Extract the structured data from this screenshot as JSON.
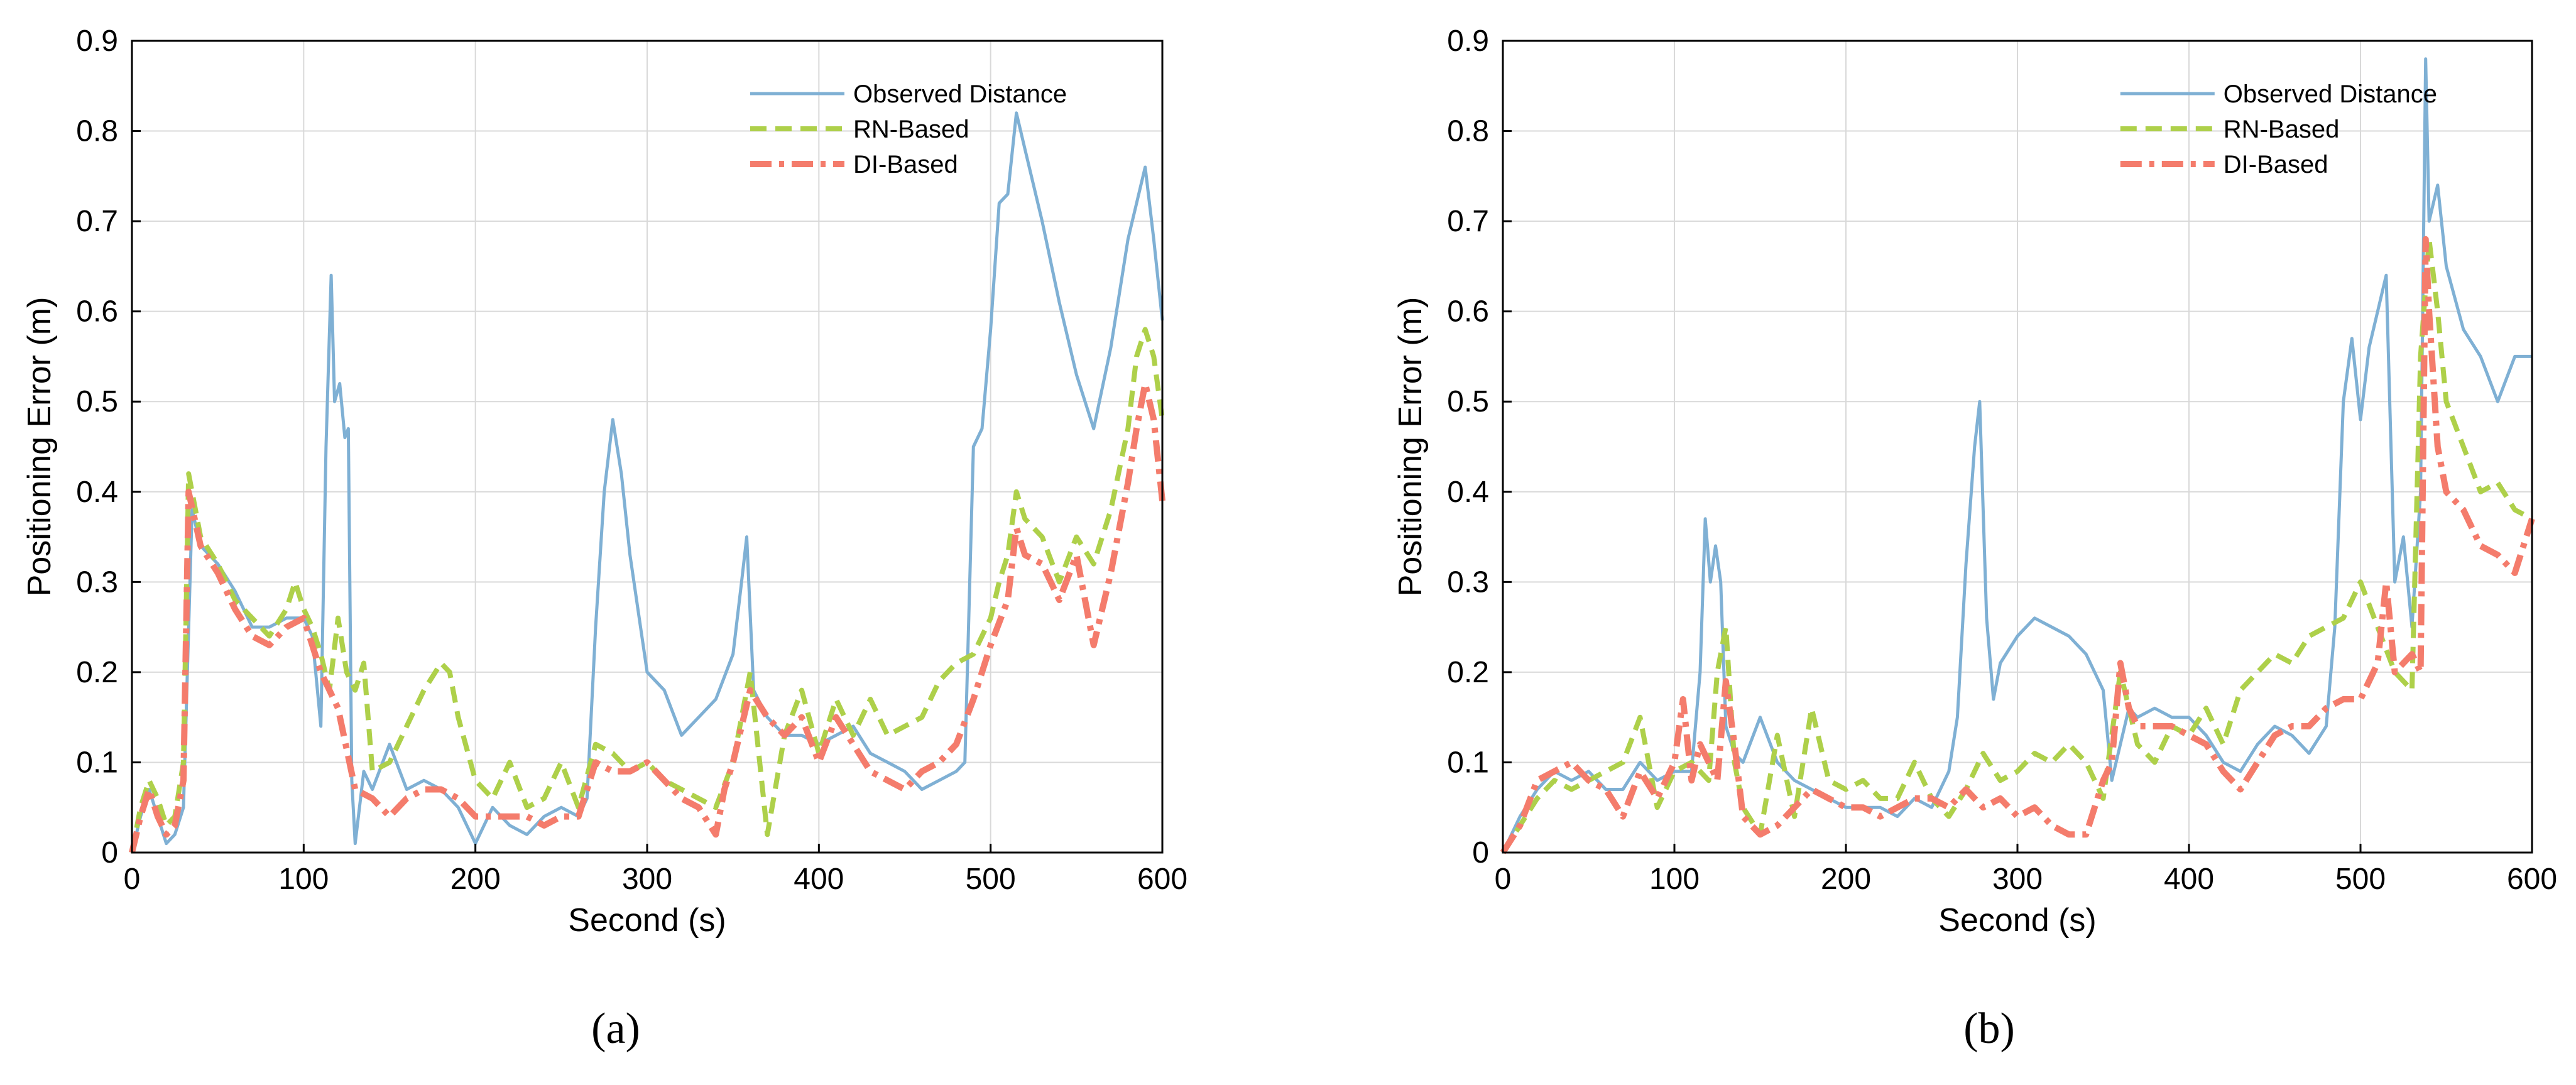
{
  "chart_data": [
    {
      "type": "line",
      "caption": "(a)",
      "caption_letter": "a",
      "xlabel": "Second (s)",
      "ylabel": "Positioning Error (m)",
      "xlim": [
        0,
        600
      ],
      "ylim": [
        0,
        0.9
      ],
      "xticks": [
        0,
        100,
        200,
        300,
        400,
        500,
        600
      ],
      "yticks": [
        0,
        0.1,
        0.2,
        0.3,
        0.4,
        0.5,
        0.6,
        0.7,
        0.8,
        0.9
      ],
      "grid": true,
      "legend_position": "top-right",
      "series": [
        {
          "name": "Observed Distance",
          "color": "#7fb0d4",
          "dash": "solid",
          "x": [
            0,
            5,
            10,
            15,
            20,
            25,
            30,
            35,
            40,
            50,
            60,
            70,
            80,
            90,
            100,
            105,
            110,
            113,
            116,
            118,
            121,
            124,
            126,
            128,
            130,
            135,
            140,
            150,
            160,
            170,
            180,
            190,
            200,
            210,
            220,
            230,
            240,
            250,
            260,
            265,
            270,
            275,
            280,
            285,
            290,
            300,
            310,
            320,
            330,
            340,
            350,
            355,
            358,
            362,
            370,
            380,
            390,
            400,
            410,
            420,
            430,
            440,
            450,
            460,
            470,
            480,
            485,
            490,
            495,
            500,
            505,
            510,
            515,
            520,
            525,
            530,
            540,
            550,
            560,
            570,
            580,
            585,
            590,
            595,
            600
          ],
          "y": [
            0.0,
            0.04,
            0.07,
            0.04,
            0.01,
            0.02,
            0.05,
            0.38,
            0.34,
            0.32,
            0.29,
            0.25,
            0.25,
            0.26,
            0.26,
            0.24,
            0.14,
            0.45,
            0.64,
            0.5,
            0.52,
            0.46,
            0.47,
            0.08,
            0.01,
            0.09,
            0.07,
            0.12,
            0.07,
            0.08,
            0.07,
            0.05,
            0.01,
            0.05,
            0.03,
            0.02,
            0.04,
            0.05,
            0.04,
            0.06,
            0.25,
            0.4,
            0.48,
            0.42,
            0.33,
            0.2,
            0.18,
            0.13,
            0.15,
            0.17,
            0.22,
            0.3,
            0.35,
            0.18,
            0.15,
            0.13,
            0.13,
            0.12,
            0.13,
            0.14,
            0.11,
            0.1,
            0.09,
            0.07,
            0.08,
            0.09,
            0.1,
            0.45,
            0.47,
            0.58,
            0.72,
            0.73,
            0.82,
            0.78,
            0.74,
            0.7,
            0.61,
            0.53,
            0.47,
            0.56,
            0.68,
            0.72,
            0.76,
            0.68,
            0.59
          ]
        },
        {
          "name": "RN-Based",
          "color": "#aed04a",
          "dash": "dashed",
          "x": [
            0,
            5,
            10,
            15,
            20,
            25,
            30,
            33,
            40,
            50,
            60,
            70,
            80,
            90,
            95,
            100,
            105,
            110,
            115,
            120,
            125,
            130,
            135,
            140,
            150,
            160,
            170,
            180,
            185,
            190,
            200,
            210,
            220,
            230,
            240,
            250,
            260,
            270,
            280,
            290,
            300,
            310,
            320,
            330,
            340,
            350,
            360,
            370,
            380,
            390,
            400,
            410,
            420,
            430,
            440,
            450,
            460,
            470,
            480,
            490,
            500,
            505,
            510,
            515,
            520,
            530,
            540,
            550,
            560,
            570,
            580,
            585,
            590,
            595,
            600
          ],
          "y": [
            0.0,
            0.05,
            0.08,
            0.06,
            0.03,
            0.04,
            0.1,
            0.42,
            0.35,
            0.32,
            0.28,
            0.26,
            0.24,
            0.27,
            0.3,
            0.27,
            0.25,
            0.22,
            0.18,
            0.26,
            0.2,
            0.18,
            0.21,
            0.09,
            0.1,
            0.14,
            0.18,
            0.21,
            0.2,
            0.15,
            0.08,
            0.06,
            0.1,
            0.05,
            0.06,
            0.1,
            0.05,
            0.12,
            0.11,
            0.09,
            0.1,
            0.08,
            0.07,
            0.06,
            0.05,
            0.1,
            0.2,
            0.02,
            0.13,
            0.18,
            0.11,
            0.17,
            0.13,
            0.17,
            0.13,
            0.14,
            0.15,
            0.19,
            0.21,
            0.22,
            0.26,
            0.3,
            0.33,
            0.4,
            0.37,
            0.35,
            0.3,
            0.35,
            0.32,
            0.38,
            0.47,
            0.55,
            0.58,
            0.55,
            0.48
          ]
        },
        {
          "name": "DI-Based",
          "color": "#f47c6c",
          "dash": "dashdot",
          "x": [
            0,
            5,
            10,
            15,
            20,
            25,
            30,
            33,
            40,
            50,
            60,
            70,
            80,
            90,
            100,
            110,
            120,
            130,
            140,
            150,
            160,
            170,
            180,
            190,
            200,
            210,
            220,
            230,
            240,
            250,
            260,
            270,
            280,
            290,
            300,
            310,
            320,
            330,
            340,
            345,
            350,
            360,
            370,
            380,
            390,
            400,
            410,
            420,
            430,
            440,
            450,
            460,
            470,
            480,
            490,
            500,
            510,
            515,
            520,
            530,
            540,
            550,
            560,
            570,
            580,
            585,
            590,
            595,
            600
          ],
          "y": [
            0.0,
            0.04,
            0.07,
            0.04,
            0.02,
            0.03,
            0.08,
            0.4,
            0.34,
            0.31,
            0.27,
            0.24,
            0.23,
            0.25,
            0.26,
            0.2,
            0.16,
            0.07,
            0.06,
            0.04,
            0.06,
            0.07,
            0.07,
            0.06,
            0.04,
            0.04,
            0.04,
            0.04,
            0.03,
            0.04,
            0.04,
            0.1,
            0.09,
            0.09,
            0.1,
            0.08,
            0.06,
            0.05,
            0.02,
            0.07,
            0.1,
            0.18,
            0.15,
            0.13,
            0.15,
            0.1,
            0.15,
            0.12,
            0.09,
            0.08,
            0.07,
            0.09,
            0.1,
            0.12,
            0.17,
            0.23,
            0.28,
            0.36,
            0.33,
            0.32,
            0.28,
            0.33,
            0.23,
            0.31,
            0.41,
            0.47,
            0.52,
            0.48,
            0.39
          ]
        }
      ]
    },
    {
      "type": "line",
      "caption": "(b)",
      "caption_letter": "b",
      "xlabel": "Second (s)",
      "ylabel": "Positioning Error (m)",
      "xlim": [
        0,
        600
      ],
      "ylim": [
        0,
        0.9
      ],
      "xticks": [
        0,
        100,
        200,
        300,
        400,
        500,
        600
      ],
      "yticks": [
        0,
        0.1,
        0.2,
        0.3,
        0.4,
        0.5,
        0.6,
        0.7,
        0.8,
        0.9
      ],
      "grid": true,
      "legend_position": "top-right",
      "series": [
        {
          "name": "Observed Distance",
          "color": "#7fb0d4",
          "dash": "solid",
          "x": [
            0,
            10,
            20,
            30,
            40,
            50,
            60,
            70,
            80,
            90,
            100,
            110,
            115,
            118,
            121,
            124,
            127,
            130,
            135,
            140,
            150,
            160,
            170,
            180,
            190,
            200,
            210,
            220,
            230,
            240,
            250,
            260,
            265,
            270,
            275,
            278,
            282,
            286,
            290,
            300,
            310,
            320,
            330,
            340,
            350,
            355,
            360,
            365,
            370,
            380,
            390,
            400,
            410,
            420,
            430,
            440,
            450,
            460,
            470,
            480,
            485,
            490,
            495,
            500,
            505,
            510,
            515,
            520,
            525,
            530,
            535,
            538,
            540,
            545,
            550,
            560,
            570,
            580,
            590,
            600
          ],
          "y": [
            0.0,
            0.04,
            0.07,
            0.09,
            0.08,
            0.09,
            0.07,
            0.07,
            0.1,
            0.08,
            0.09,
            0.09,
            0.2,
            0.37,
            0.3,
            0.34,
            0.3,
            0.14,
            0.11,
            0.1,
            0.15,
            0.1,
            0.08,
            0.07,
            0.06,
            0.05,
            0.05,
            0.05,
            0.04,
            0.06,
            0.05,
            0.09,
            0.15,
            0.32,
            0.45,
            0.5,
            0.26,
            0.17,
            0.21,
            0.24,
            0.26,
            0.25,
            0.24,
            0.22,
            0.18,
            0.08,
            0.12,
            0.16,
            0.15,
            0.16,
            0.15,
            0.15,
            0.13,
            0.1,
            0.09,
            0.12,
            0.14,
            0.13,
            0.11,
            0.14,
            0.25,
            0.5,
            0.57,
            0.48,
            0.56,
            0.6,
            0.64,
            0.3,
            0.35,
            0.25,
            0.4,
            0.88,
            0.7,
            0.74,
            0.65,
            0.58,
            0.55,
            0.5,
            0.55,
            0.55
          ]
        },
        {
          "name": "RN-Based",
          "color": "#aed04a",
          "dash": "dashed",
          "x": [
            0,
            10,
            20,
            30,
            40,
            50,
            60,
            70,
            80,
            90,
            100,
            110,
            120,
            125,
            130,
            135,
            140,
            150,
            160,
            170,
            180,
            190,
            200,
            210,
            220,
            230,
            240,
            250,
            260,
            270,
            280,
            290,
            300,
            310,
            320,
            330,
            340,
            350,
            360,
            370,
            380,
            390,
            400,
            410,
            420,
            430,
            440,
            450,
            460,
            470,
            480,
            490,
            500,
            510,
            520,
            530,
            535,
            540,
            545,
            550,
            560,
            570,
            580,
            590,
            600
          ],
          "y": [
            0.0,
            0.03,
            0.06,
            0.08,
            0.07,
            0.08,
            0.09,
            0.1,
            0.15,
            0.05,
            0.09,
            0.1,
            0.08,
            0.2,
            0.25,
            0.1,
            0.05,
            0.02,
            0.13,
            0.04,
            0.16,
            0.08,
            0.07,
            0.08,
            0.06,
            0.06,
            0.1,
            0.06,
            0.04,
            0.07,
            0.11,
            0.08,
            0.09,
            0.11,
            0.1,
            0.12,
            0.1,
            0.06,
            0.2,
            0.12,
            0.1,
            0.14,
            0.13,
            0.16,
            0.12,
            0.18,
            0.2,
            0.22,
            0.21,
            0.24,
            0.25,
            0.26,
            0.3,
            0.25,
            0.2,
            0.18,
            0.55,
            0.68,
            0.6,
            0.5,
            0.45,
            0.4,
            0.41,
            0.38,
            0.37
          ]
        },
        {
          "name": "DI-Based",
          "color": "#f47c6c",
          "dash": "dashdot",
          "x": [
            0,
            10,
            20,
            30,
            40,
            50,
            60,
            70,
            80,
            90,
            100,
            105,
            110,
            115,
            120,
            125,
            130,
            135,
            140,
            150,
            160,
            170,
            180,
            190,
            200,
            210,
            220,
            230,
            240,
            250,
            260,
            270,
            280,
            290,
            300,
            310,
            320,
            330,
            340,
            350,
            355,
            360,
            365,
            370,
            380,
            390,
            400,
            410,
            420,
            430,
            440,
            450,
            460,
            470,
            480,
            490,
            500,
            510,
            515,
            520,
            525,
            530,
            535,
            538,
            540,
            545,
            550,
            560,
            570,
            580,
            590,
            600
          ],
          "y": [
            0.0,
            0.03,
            0.08,
            0.09,
            0.1,
            0.08,
            0.07,
            0.04,
            0.09,
            0.06,
            0.1,
            0.17,
            0.08,
            0.12,
            0.1,
            0.08,
            0.19,
            0.12,
            0.04,
            0.02,
            0.03,
            0.05,
            0.07,
            0.06,
            0.05,
            0.05,
            0.04,
            0.05,
            0.06,
            0.06,
            0.05,
            0.07,
            0.05,
            0.06,
            0.04,
            0.05,
            0.03,
            0.02,
            0.02,
            0.08,
            0.1,
            0.21,
            0.16,
            0.14,
            0.14,
            0.14,
            0.13,
            0.12,
            0.09,
            0.07,
            0.1,
            0.13,
            0.14,
            0.14,
            0.16,
            0.17,
            0.17,
            0.21,
            0.3,
            0.2,
            0.21,
            0.22,
            0.2,
            0.68,
            0.6,
            0.45,
            0.4,
            0.38,
            0.34,
            0.33,
            0.31,
            0.37
          ]
        }
      ]
    }
  ]
}
